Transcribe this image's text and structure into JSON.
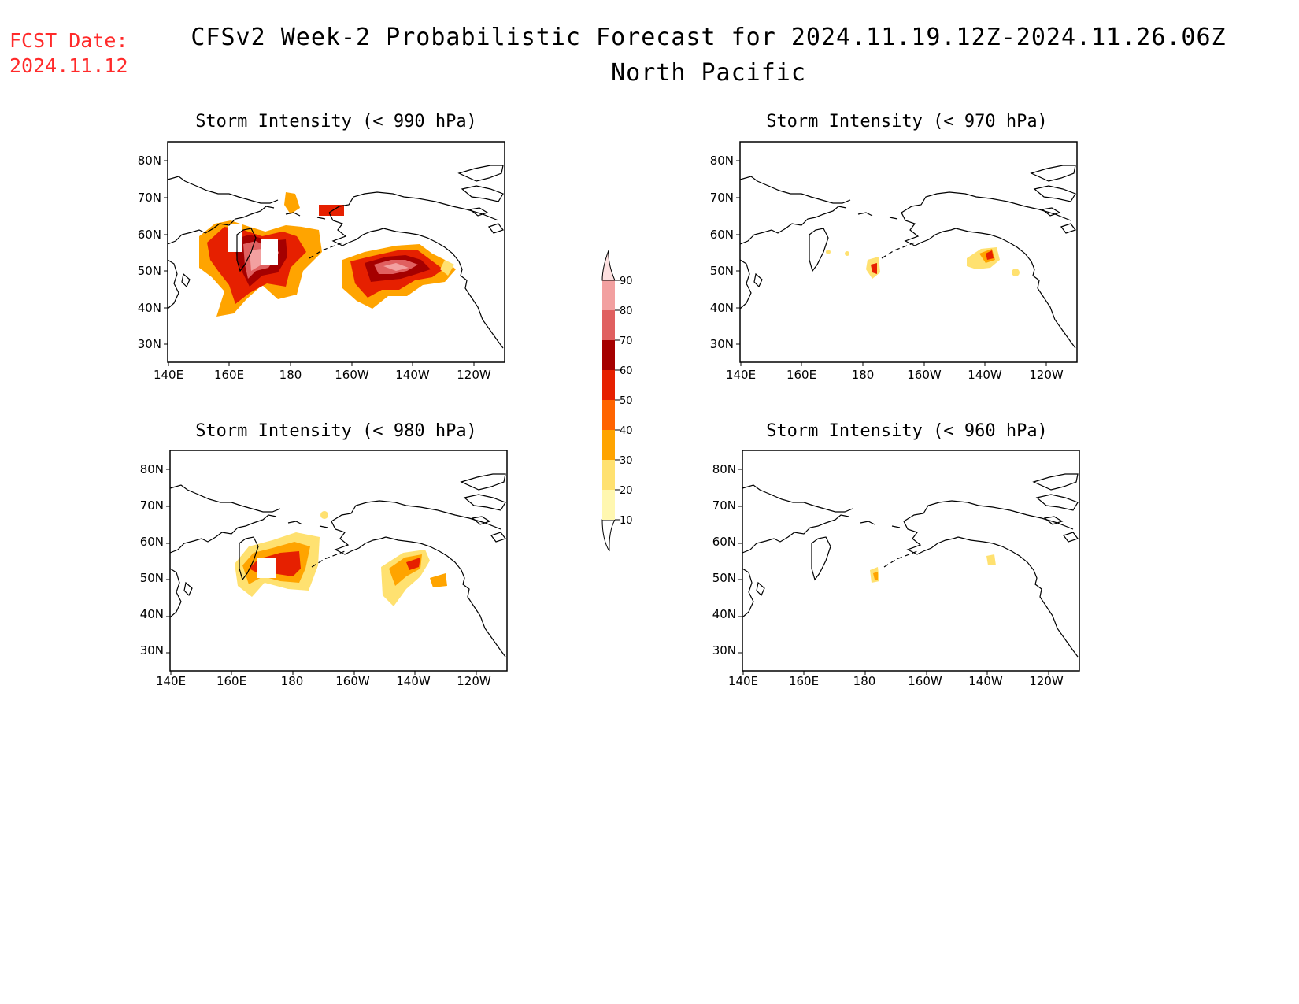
{
  "header": {
    "fcst_label": "FCST Date:",
    "fcst_date": "2024.11.12",
    "title": "CFSv2 Week-2 Probabilistic Forecast for 2024.11.19.12Z-2024.11.26.06Z",
    "region": "North Pacific"
  },
  "panels": [
    {
      "title": "Storm Intensity (< 990 hPa)"
    },
    {
      "title": "Storm Intensity (< 970 hPa)"
    },
    {
      "title": "Storm Intensity (< 980 hPa)"
    },
    {
      "title": "Storm Intensity (< 960 hPa)"
    }
  ],
  "axes": {
    "lat_labels": [
      "80N",
      "70N",
      "60N",
      "50N",
      "40N",
      "30N"
    ],
    "lon_labels": [
      "140E",
      "160E",
      "180",
      "160W",
      "140W",
      "120W"
    ]
  },
  "colorbar": {
    "levels": [
      "10",
      "20",
      "30",
      "40",
      "50",
      "60",
      "70",
      "80",
      "90"
    ],
    "colors": [
      "#fff7b0",
      "#ffe170",
      "#ffa400",
      "#ff6400",
      "#e62000",
      "#a50000",
      "#e06060",
      "#f2a0a0",
      "#fde0e0"
    ]
  }
}
